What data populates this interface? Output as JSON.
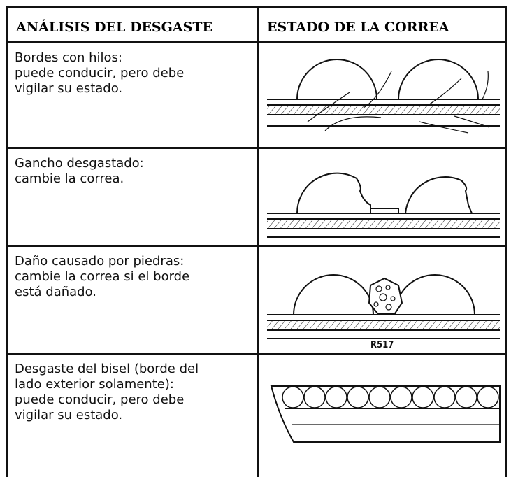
{
  "table": {
    "headers": [
      "ANÁLISIS DEL DESGASTE",
      "ESTADO DE LA CORREA"
    ],
    "rows": [
      {
        "analysis": [
          "Bordes con hilos:",
          "puede conducir, pero debe",
          "vigilar su estado."
        ]
      },
      {
        "analysis": [
          "Gancho desgastado:",
          "cambie la correa."
        ]
      },
      {
        "analysis": [
          "Daño causado por piedras:",
          "cambie la correa si el borde",
          "está dañado."
        ],
        "figure_code": "R517"
      },
      {
        "analysis": [
          "Desgaste del bisel (borde del",
          "lado exterior solamente):",
          "puede conducir, pero debe",
          "vigilar su estado."
        ]
      }
    ]
  }
}
